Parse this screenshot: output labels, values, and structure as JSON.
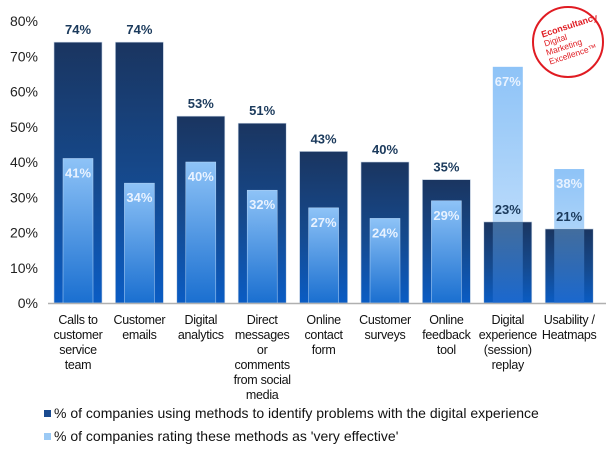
{
  "chart_data": {
    "type": "bar",
    "title": "",
    "xlabel": "",
    "ylabel": "",
    "ylim": [
      0,
      80
    ],
    "yticks": [
      "0%",
      "10%",
      "20%",
      "30%",
      "40%",
      "50%",
      "60%",
      "70%",
      "80%"
    ],
    "grid": false,
    "legend_position": "bottom-left",
    "categories": [
      [
        "Calls to",
        "customer",
        "service",
        "team"
      ],
      [
        "Customer",
        "emails"
      ],
      [
        "Digital",
        "analytics"
      ],
      [
        "Direct",
        "messages",
        "or",
        "comments",
        "from social",
        "media"
      ],
      [
        "Online",
        "contact",
        "form"
      ],
      [
        "Customer",
        "surveys"
      ],
      [
        "Online",
        "feedback",
        "tool"
      ],
      [
        "Digital",
        "experience",
        "(session)",
        "replay"
      ],
      [
        "Usability /",
        "Heatmaps"
      ]
    ],
    "series": [
      {
        "name": "% of companies using methods to identify problems with the digital experience",
        "color": "#1a3561",
        "values": [
          74,
          74,
          53,
          51,
          43,
          40,
          35,
          23,
          21
        ],
        "labels": [
          "74%",
          "74%",
          "53%",
          "51%",
          "43%",
          "40%",
          "35%",
          "23%",
          "21%"
        ]
      },
      {
        "name": "% of companies rating these methods as 'very effective'",
        "color": "#8ec3f5",
        "values": [
          41,
          34,
          40,
          32,
          27,
          24,
          29,
          67,
          38
        ],
        "labels": [
          "41%",
          "34%",
          "40%",
          "32%",
          "27%",
          "24%",
          "29%",
          "67%",
          "38%"
        ]
      }
    ]
  },
  "logo": {
    "line1": "Econsultancy",
    "line2": "Digital",
    "line3": "Marketing",
    "line4": "Excellence™"
  }
}
